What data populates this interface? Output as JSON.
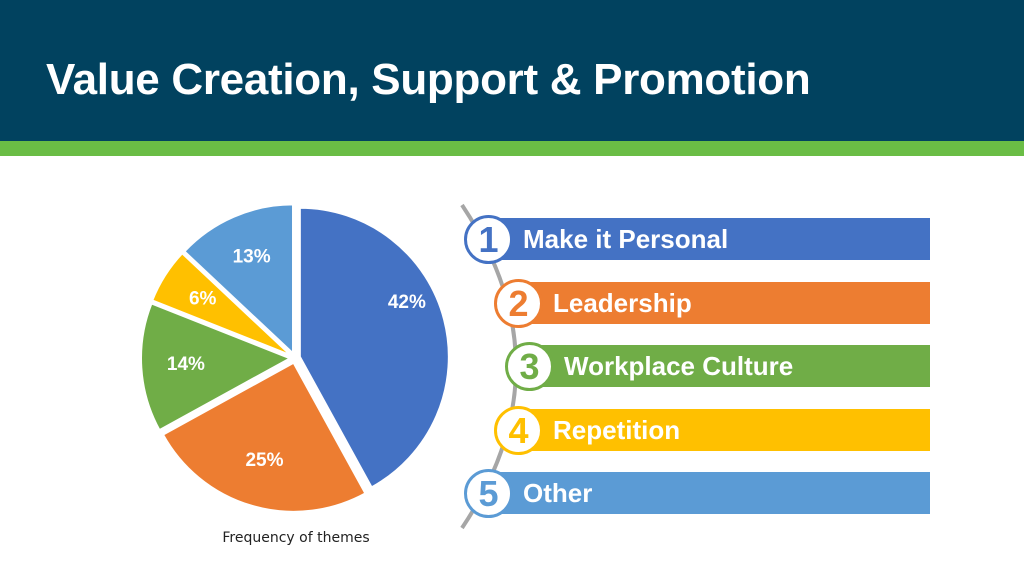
{
  "header": {
    "title": "Value Creation, Support & Promotion"
  },
  "chart_data": {
    "type": "pie",
    "caption": "Frequency of themes",
    "slices": [
      {
        "label": "42%",
        "value": 42,
        "color": "#4472c4"
      },
      {
        "label": "25%",
        "value": 25,
        "color": "#ed7d31"
      },
      {
        "label": "14%",
        "value": 14,
        "color": "#70ad47"
      },
      {
        "label": "6%",
        "value": 6,
        "color": "#ffc000"
      },
      {
        "label": "13%",
        "value": 13,
        "color": "#5b9bd5"
      }
    ]
  },
  "themes": [
    {
      "number": "1",
      "label": "Make it Personal",
      "color": "#4472c4"
    },
    {
      "number": "2",
      "label": "Leadership",
      "color": "#ed7d31"
    },
    {
      "number": "3",
      "label": "Workplace Culture",
      "color": "#70ad47"
    },
    {
      "number": "4",
      "label": "Repetition",
      "color": "#ffc000"
    },
    {
      "number": "5",
      "label": "Other",
      "color": "#5b9bd5"
    }
  ]
}
